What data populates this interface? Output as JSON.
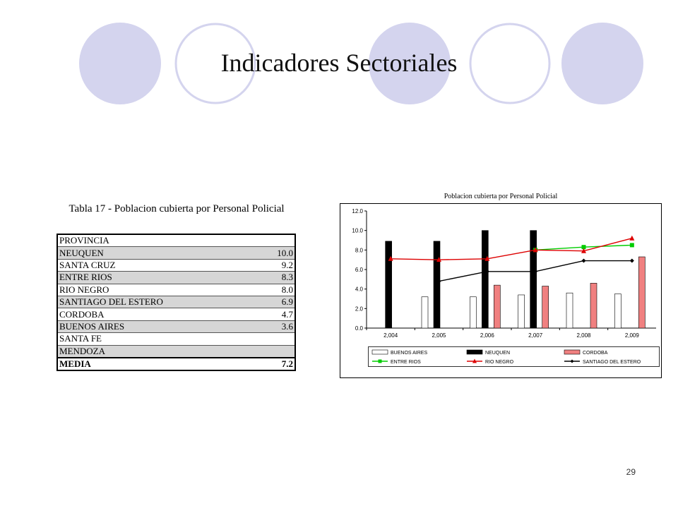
{
  "slide": {
    "title": "Indicadores Sectoriales",
    "page_number": "29"
  },
  "table": {
    "title": "Tabla 17 - Poblacion cubierta por Personal Policial",
    "header": "PROVINCIA",
    "rows": [
      {
        "name": "NEUQUEN",
        "value": "10.0"
      },
      {
        "name": "SANTA CRUZ",
        "value": "9.2"
      },
      {
        "name": "ENTRE RIOS",
        "value": "8.3"
      },
      {
        "name": "RIO NEGRO",
        "value": "8.0"
      },
      {
        "name": "SANTIAGO DEL ESTERO",
        "value": "6.9"
      },
      {
        "name": "CORDOBA",
        "value": "4.7"
      },
      {
        "name": "BUENOS AIRES",
        "value": "3.6"
      },
      {
        "name": "SANTA FE",
        "value": ""
      },
      {
        "name": "MENDOZA",
        "value": ""
      }
    ],
    "footer": {
      "name": "MEDIA",
      "value": "7.2"
    }
  },
  "chart_data": {
    "type": "bar",
    "title": "Poblacion cubierta por Personal Policial",
    "categories": [
      "2,004",
      "2,005",
      "2,006",
      "2,007",
      "2,008",
      "2,009"
    ],
    "ylim": [
      0,
      12
    ],
    "yticks": [
      "0.0",
      "2.0",
      "4.0",
      "6.0",
      "8.0",
      "10.0",
      "12.0"
    ],
    "grid": false,
    "legend_position": "bottom",
    "bar_series": [
      {
        "name": "BUENOS AIRES",
        "color": "#ffffff",
        "values": [
          null,
          3.2,
          3.2,
          3.4,
          3.6,
          3.5
        ]
      },
      {
        "name": "NEUQUEN",
        "color": "#000000",
        "values": [
          8.9,
          8.9,
          10.0,
          10.0,
          null,
          null
        ]
      },
      {
        "name": "CORDOBA",
        "color": "#f08080",
        "values": [
          null,
          null,
          4.4,
          4.3,
          4.6,
          7.3
        ]
      }
    ],
    "line_series": [
      {
        "name": "ENTRE RIOS",
        "color": "#00cc00",
        "marker": "square",
        "values": [
          null,
          null,
          null,
          8.0,
          8.3,
          8.5
        ]
      },
      {
        "name": "RIO NEGRO",
        "color": "#dd0000",
        "marker": "triangle",
        "values": [
          7.1,
          7.0,
          7.1,
          8.0,
          7.9,
          9.2
        ]
      },
      {
        "name": "SANTIAGO DEL ESTERO",
        "color": "#000000",
        "marker": "diamond",
        "values": [
          null,
          4.8,
          5.8,
          5.8,
          6.9,
          6.9
        ]
      }
    ]
  }
}
